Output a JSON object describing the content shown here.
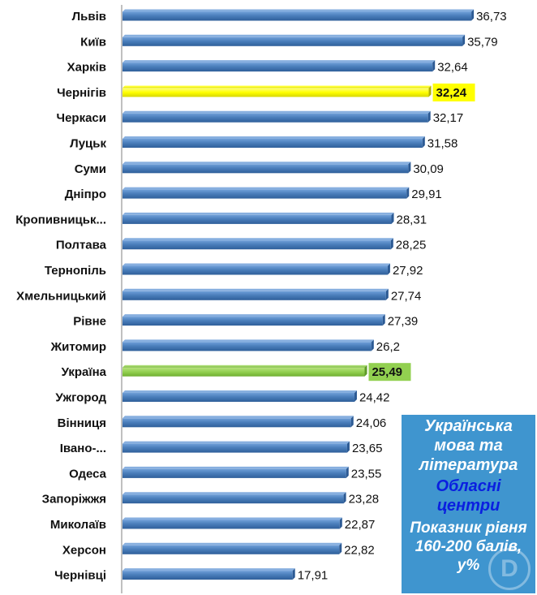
{
  "chart_data": {
    "type": "bar",
    "orientation": "horizontal",
    "categories": [
      "Львів",
      "Київ",
      "Харків",
      "Чернігів",
      "Черкаси",
      "Луцьк",
      "Суми",
      "Дніпро",
      "Кропивницьк...",
      "Полтава",
      "Тернопіль",
      "Хмельницький",
      "Рівне",
      "Житомир",
      "Україна",
      "Ужгород",
      "Вінниця",
      "Івано-...",
      "Одеса",
      "Запоріжжя",
      "Миколаїв",
      "Херсон",
      "Чернівці"
    ],
    "values": [
      36.73,
      35.79,
      32.64,
      32.24,
      32.17,
      31.58,
      30.09,
      29.91,
      28.31,
      28.25,
      27.92,
      27.74,
      27.39,
      26.2,
      25.49,
      24.42,
      24.06,
      23.65,
      23.55,
      23.28,
      22.87,
      22.82,
      17.91
    ],
    "value_labels": [
      "36,73",
      "35,79",
      "32,64",
      "32,24",
      "32,17",
      "31,58",
      "30,09",
      "29,91",
      "28,31",
      "28,25",
      "27,92",
      "27,74",
      "27,39",
      "26,2",
      "25,49",
      "24,42",
      "24,06",
      "23,65",
      "23,55",
      "23,28",
      "22,87",
      "22,82",
      "17,91"
    ],
    "highlight": {
      "Чернігів": "yellow",
      "Україна": "green"
    },
    "xlim": [
      0,
      38.6
    ],
    "grid": false,
    "colors": {
      "bar": "#4a7ebb",
      "bar_dark": "#2c5a94",
      "yellow": "#ffff00",
      "green": "#92d050",
      "axis": "#808080"
    }
  },
  "info_box": {
    "subject": "Українська мова та література",
    "scope": "Обласні центри",
    "metric": "Показник рівня 160-200 балів, у%",
    "watermark": "D"
  }
}
